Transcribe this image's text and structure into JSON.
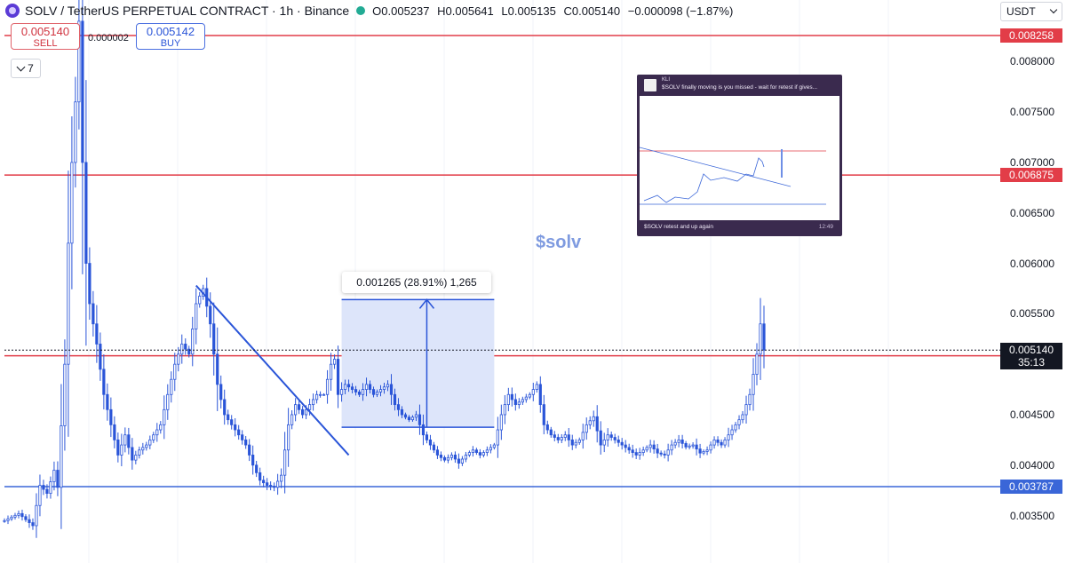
{
  "header": {
    "title": "SOLV / TetherUS PERPETUAL CONTRACT · 1h · Binance",
    "open_label": "O",
    "open": "0.005237",
    "high_label": "H",
    "high": "0.005641",
    "low_label": "L",
    "low": "0.005135",
    "close_label": "C",
    "close": "0.005140",
    "change": "−0.000098 (−1.87%)"
  },
  "trade": {
    "sell_price": "0.005140",
    "sell_label": "SELL",
    "spread": "0.000002",
    "buy_price": "0.005142",
    "buy_label": "BUY"
  },
  "layers_count": "7",
  "currency": "USDT",
  "measure_label": "0.001265 (28.91%) 1,265",
  "note": "$solv",
  "inset": {
    "name": "KLI",
    "text": "$SOLV finally moving is you missed - wait for retest if gives...",
    "caption": "$SOLV retest and up again",
    "time": "12:49"
  },
  "price_tags": [
    {
      "value": 0.008258,
      "label": "0.008258",
      "color": "#e23d48"
    },
    {
      "value": 0.006875,
      "label": "0.006875",
      "color": "#e23d48"
    },
    {
      "value": 0.005084,
      "label": "0.005084",
      "color": "#e23d48"
    },
    {
      "value": 0.003787,
      "label": "0.003787",
      "color": "#3a66d8"
    }
  ],
  "current": {
    "value": 0.00514,
    "price": "0.005140",
    "countdown": "35:13"
  },
  "colors": {
    "candle": "#2a55d8",
    "red_line": "#d63340",
    "blue_line": "#2a55d8",
    "box_fill": "#dde5fa"
  },
  "chart_data": {
    "type": "line",
    "title": "SOLV / TetherUS PERPETUAL CONTRACT · 1h · Binance",
    "ylim": [
      0.0033,
      0.0084
    ],
    "y_ticks": [
      "0.008000",
      "0.007500",
      "0.007000",
      "0.006500",
      "0.006000",
      "0.005500",
      "0.005000",
      "0.004500",
      "0.004000",
      "0.003500"
    ],
    "y_tick_values": [
      0.008,
      0.0075,
      0.007,
      0.0065,
      0.006,
      0.0055,
      0.005,
      0.0045,
      0.004,
      0.0035
    ],
    "x_count": 215,
    "series": [
      {
        "points": [
          [
            0,
            0.00345
          ],
          [
            4,
            0.00352
          ],
          [
            8,
            0.0034
          ],
          [
            10,
            0.0038
          ],
          [
            12,
            0.00372
          ],
          [
            14,
            0.00395
          ],
          [
            15,
            0.00378
          ],
          [
            17,
            0.005
          ],
          [
            18,
            0.0062
          ],
          [
            19,
            0.007
          ],
          [
            20,
            0.0076
          ],
          [
            21,
            0.0084
          ],
          [
            22,
            0.007
          ],
          [
            23,
            0.006
          ],
          [
            24,
            0.0056
          ],
          [
            26,
            0.0052
          ],
          [
            28,
            0.0047
          ],
          [
            30,
            0.0044
          ],
          [
            32,
            0.0041
          ],
          [
            34,
            0.0043
          ],
          [
            36,
            0.00405
          ],
          [
            38,
            0.00415
          ],
          [
            40,
            0.0042
          ],
          [
            42,
            0.0043
          ],
          [
            44,
            0.0044
          ],
          [
            46,
            0.0047
          ],
          [
            48,
            0.005
          ],
          [
            50,
            0.0052
          ],
          [
            52,
            0.0051
          ],
          [
            54,
            0.0056
          ],
          [
            56,
            0.00575
          ],
          [
            58,
            0.0054
          ],
          [
            60,
            0.0048
          ],
          [
            62,
            0.0045
          ],
          [
            64,
            0.0044
          ],
          [
            66,
            0.0043
          ],
          [
            68,
            0.0042
          ],
          [
            70,
            0.004
          ],
          [
            72,
            0.00385
          ],
          [
            74,
            0.0038
          ],
          [
            76,
            0.00378
          ],
          [
            78,
            0.0039
          ],
          [
            80,
            0.0044
          ],
          [
            82,
            0.0046
          ],
          [
            84,
            0.0045
          ],
          [
            86,
            0.0046
          ],
          [
            88,
            0.0047
          ],
          [
            90,
            0.0047
          ],
          [
            92,
            0.005
          ],
          [
            93,
            0.00505
          ],
          [
            94,
            0.0047
          ],
          [
            96,
            0.0048
          ],
          [
            98,
            0.00475
          ],
          [
            100,
            0.0047
          ],
          [
            102,
            0.0048
          ],
          [
            104,
            0.0047
          ],
          [
            106,
            0.00475
          ],
          [
            108,
            0.0048
          ],
          [
            110,
            0.0046
          ],
          [
            112,
            0.0045
          ],
          [
            114,
            0.00445
          ],
          [
            116,
            0.0045
          ],
          [
            118,
            0.0043
          ],
          [
            120,
            0.0042
          ],
          [
            122,
            0.0041
          ],
          [
            124,
            0.00405
          ],
          [
            126,
            0.0041
          ],
          [
            128,
            0.00402
          ],
          [
            130,
            0.0041
          ],
          [
            132,
            0.00415
          ],
          [
            134,
            0.0041
          ],
          [
            136,
            0.00415
          ],
          [
            138,
            0.0042
          ],
          [
            140,
            0.0045
          ],
          [
            142,
            0.0047
          ],
          [
            144,
            0.0046
          ],
          [
            146,
            0.00465
          ],
          [
            148,
            0.0047
          ],
          [
            150,
            0.0048
          ],
          [
            152,
            0.0044
          ],
          [
            154,
            0.0043
          ],
          [
            156,
            0.00425
          ],
          [
            158,
            0.0043
          ],
          [
            160,
            0.0042
          ],
          [
            162,
            0.00425
          ],
          [
            164,
            0.0044
          ],
          [
            166,
            0.00448
          ],
          [
            168,
            0.0042
          ],
          [
            170,
            0.0043
          ],
          [
            172,
            0.00425
          ],
          [
            174,
            0.0042
          ],
          [
            176,
            0.00415
          ],
          [
            178,
            0.0041
          ],
          [
            180,
            0.00415
          ],
          [
            182,
            0.0042
          ],
          [
            184,
            0.00412
          ],
          [
            186,
            0.0041
          ],
          [
            188,
            0.0042
          ],
          [
            190,
            0.00425
          ],
          [
            192,
            0.00418
          ],
          [
            194,
            0.0042
          ],
          [
            196,
            0.00412
          ],
          [
            198,
            0.00415
          ],
          [
            200,
            0.00425
          ],
          [
            202,
            0.0042
          ],
          [
            204,
            0.0043
          ],
          [
            206,
            0.0044
          ],
          [
            208,
            0.0045
          ],
          [
            210,
            0.0047
          ],
          [
            211,
            0.0049
          ],
          [
            212,
            0.0051
          ],
          [
            213,
            0.0054
          ],
          [
            214,
            0.00514
          ]
        ]
      }
    ],
    "annotations": {
      "trendline": [
        [
          54,
          0.00578
        ],
        [
          97,
          0.0041
        ]
      ],
      "measure_box": {
        "x_start": 95,
        "x_end": 138,
        "y_bottom": 0.004376,
        "y_top": 0.005641
      },
      "horizontal_levels": [
        0.008258,
        0.006875,
        0.005084,
        0.003787
      ]
    }
  }
}
